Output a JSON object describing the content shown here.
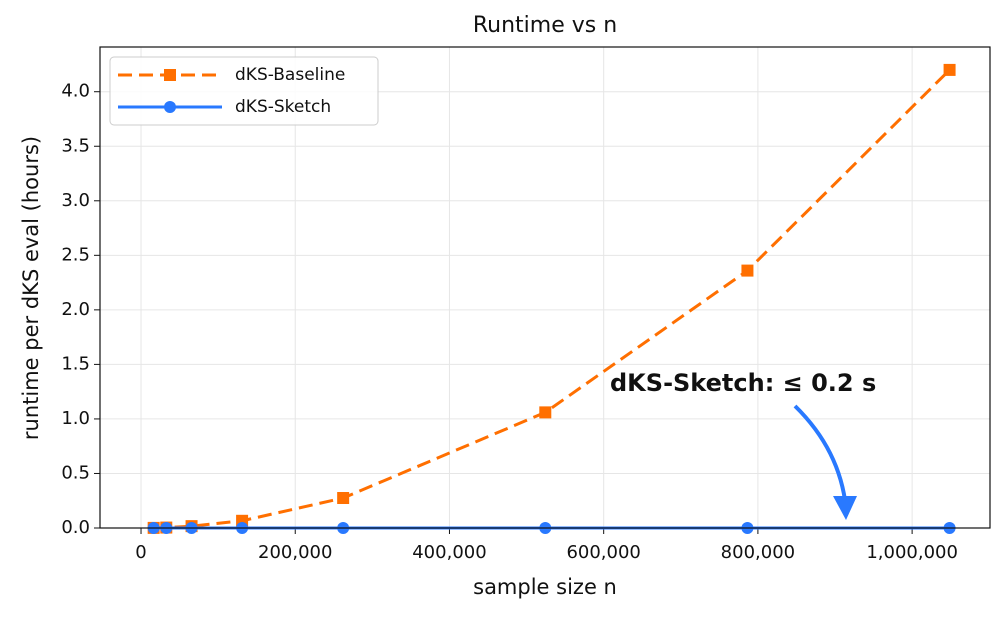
{
  "chart_data": {
    "type": "line",
    "title": "Runtime vs n",
    "xlabel": "sample size  n",
    "ylabel": "runtime per dKS eval  (hours)",
    "x": [
      16384,
      32768,
      65536,
      131072,
      262144,
      524288,
      786432,
      1048576
    ],
    "series": [
      {
        "name": "dKS-Baseline",
        "color": "#ff6f00",
        "marker": "square",
        "dashed": true,
        "values": [
          0.001,
          0.004,
          0.017,
          0.066,
          0.275,
          1.06,
          2.36,
          4.2
        ]
      },
      {
        "name": "dKS-Sketch",
        "color": "#2979ff",
        "marker": "circle",
        "dashed": false,
        "values": [
          0,
          0,
          0,
          0,
          0,
          0,
          0,
          0
        ]
      }
    ],
    "xlim": [
      -53200,
      1101000
    ],
    "ylim": [
      0,
      4.41
    ],
    "xticks": [
      0,
      {
        "value": 200000,
        "label": "200,000"
      },
      {
        "value": 400000,
        "label": "400,000"
      },
      {
        "value": 600000,
        "label": "600,000"
      },
      {
        "value": 800000,
        "label": "800,000"
      },
      {
        "value": 1000000,
        "label": "1,000,000"
      }
    ],
    "yticks": [
      {
        "value": 0,
        "label": "0.0"
      },
      {
        "value": 0.5,
        "label": "0.5"
      },
      {
        "value": 1,
        "label": "1.0"
      },
      {
        "value": 1.5,
        "label": "1.5"
      },
      {
        "value": 2,
        "label": "2.0"
      },
      {
        "value": 2.5,
        "label": "2.5"
      },
      {
        "value": 3,
        "label": "3.0"
      },
      {
        "value": 3.5,
        "label": "3.5"
      },
      {
        "value": 4,
        "label": "4.0"
      }
    ],
    "grid": true,
    "legend": "upper-left",
    "annotation": "dKS-Sketch: ≤ 0.2 s"
  }
}
